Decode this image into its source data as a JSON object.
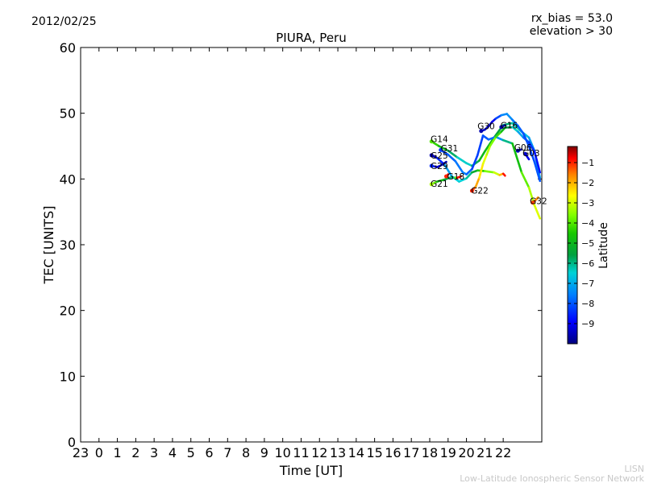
{
  "header": {
    "date": "2012/02/25",
    "rx_bias": "rx_bias = 53.0",
    "elevation": "elevation > 30"
  },
  "footer": {
    "org_short": "LISN",
    "org_full": "Low-Latitude Ionospheric Sensor Network"
  },
  "chart_data": {
    "type": "line",
    "title": "PIURA, Peru",
    "xlabel": "Time [UT]",
    "ylabel": "TEC [UNITS]",
    "xlim": [
      23,
      48.1
    ],
    "ylim": [
      0,
      60
    ],
    "x_ticks": [
      {
        "value": 23,
        "label": "23"
      },
      {
        "value": 24,
        "label": "0"
      },
      {
        "value": 25,
        "label": "1"
      },
      {
        "value": 26,
        "label": "2"
      },
      {
        "value": 27,
        "label": "3"
      },
      {
        "value": 28,
        "label": "4"
      },
      {
        "value": 29,
        "label": "5"
      },
      {
        "value": 30,
        "label": "6"
      },
      {
        "value": 31,
        "label": "7"
      },
      {
        "value": 32,
        "label": "8"
      },
      {
        "value": 33,
        "label": "9"
      },
      {
        "value": 34,
        "label": "10"
      },
      {
        "value": 35,
        "label": "11"
      },
      {
        "value": 36,
        "label": "12"
      },
      {
        "value": 37,
        "label": "13"
      },
      {
        "value": 38,
        "label": "14"
      },
      {
        "value": 39,
        "label": "15"
      },
      {
        "value": 40,
        "label": "16"
      },
      {
        "value": 41,
        "label": "17"
      },
      {
        "value": 42,
        "label": "18"
      },
      {
        "value": 43,
        "label": "19"
      },
      {
        "value": 44,
        "label": "20"
      },
      {
        "value": 45,
        "label": "21"
      },
      {
        "value": 46,
        "label": "22"
      }
    ],
    "y_ticks": [
      0,
      10,
      20,
      30,
      40,
      50,
      60
    ],
    "colorbar": {
      "label": "Latitude",
      "min": -10,
      "max": -0.2,
      "ticks": [
        -1,
        -2,
        -3,
        -4,
        -5,
        -6,
        -7,
        -8,
        -9
      ]
    },
    "series": [
      {
        "name": "G14",
        "label_at": [
          42.05,
          45.6
        ],
        "points": [
          [
            42.1,
            45.7,
            -4.0
          ],
          [
            42.5,
            45.0,
            -4.6
          ],
          [
            43.0,
            44.3,
            -5.4
          ],
          [
            43.5,
            43.3,
            -6.2
          ],
          [
            44.0,
            42.4,
            -6.6
          ],
          [
            44.3,
            42.0,
            -6.2
          ],
          [
            44.7,
            42.8,
            -5.3
          ],
          [
            45.0,
            44.2,
            -4.6
          ],
          [
            45.5,
            46.3,
            -5.2
          ],
          [
            46.0,
            48.2,
            -5.8
          ],
          [
            46.5,
            48.5,
            -6.0
          ],
          [
            47.0,
            47.2,
            -6.5
          ],
          [
            47.4,
            46.3,
            -7.0
          ],
          [
            47.7,
            44.3,
            -7.4
          ],
          [
            48.0,
            40.2,
            -6.8
          ]
        ]
      },
      {
        "name": "G31",
        "label_at": [
          42.6,
          44.2
        ],
        "points": [
          [
            42.6,
            44.4,
            -8.3
          ],
          [
            43.0,
            43.7,
            -8.0
          ],
          [
            43.4,
            42.7,
            -7.8
          ],
          [
            43.8,
            41.0,
            -7.5
          ],
          [
            44.0,
            40.7,
            -7.6
          ],
          [
            44.3,
            41.5,
            -8.1
          ],
          [
            44.6,
            43.6,
            -8.4
          ],
          [
            44.9,
            46.6,
            -8.1
          ],
          [
            45.2,
            46.0,
            -7.9
          ],
          [
            45.6,
            46.4,
            -7.7
          ],
          [
            46.0,
            45.9,
            -6.8
          ],
          [
            46.5,
            45.4,
            -5.2
          ],
          [
            47.0,
            41.0,
            -4.3
          ],
          [
            47.4,
            38.7,
            -3.5
          ],
          [
            47.7,
            36.0,
            -3.0
          ],
          [
            48.0,
            34.0,
            -2.8
          ]
        ]
      },
      {
        "name": "G25",
        "label_at": [
          42.05,
          43.1
        ],
        "points": [
          [
            42.1,
            43.6,
            -9.6
          ],
          [
            42.4,
            43.2,
            -9.3
          ],
          [
            42.8,
            42.2,
            -7.8
          ],
          [
            43.2,
            40.4,
            -6.5
          ],
          [
            43.6,
            39.6,
            -6.6
          ],
          [
            44.0,
            40.1,
            -6.4
          ],
          [
            44.3,
            41.0,
            -5.8
          ],
          [
            44.6,
            41.3,
            -4.9
          ],
          [
            45.0,
            41.2,
            -4.0
          ],
          [
            45.5,
            41.0,
            -3.3
          ],
          [
            45.8,
            40.6,
            -2.8
          ],
          [
            46.0,
            40.8,
            -1.3
          ],
          [
            46.1,
            40.5,
            -0.5
          ]
        ]
      },
      {
        "name": "G29",
        "label_at": [
          42.05,
          41.5
        ],
        "points": [
          [
            42.1,
            42.0,
            -8.5
          ],
          [
            42.4,
            41.8,
            -9.0
          ],
          [
            42.7,
            42.2,
            -9.5
          ],
          [
            42.9,
            42.6,
            -9.7
          ]
        ]
      },
      {
        "name": "G21",
        "label_at": [
          42.05,
          38.8
        ],
        "points": [
          [
            42.1,
            39.2,
            -3.3
          ],
          [
            42.4,
            39.6,
            -4.3
          ],
          [
            42.8,
            39.9,
            -5.3
          ],
          [
            43.1,
            40.2,
            -5.8
          ],
          [
            43.4,
            40.2,
            -6.2
          ],
          [
            43.5,
            40.2,
            -1.2
          ],
          [
            43.7,
            40.4,
            -0.5
          ]
        ]
      },
      {
        "name": "G18",
        "label_at": [
          42.95,
          39.9
        ],
        "points": [
          [
            42.9,
            40.4,
            -1.0
          ],
          [
            43.0,
            40.7,
            -0.5
          ]
        ]
      },
      {
        "name": "G22",
        "label_at": [
          44.25,
          37.8
        ],
        "points": [
          [
            44.3,
            38.2,
            -1.0
          ],
          [
            44.5,
            38.8,
            -1.6
          ],
          [
            44.7,
            40.2,
            -2.2
          ],
          [
            44.9,
            42.3,
            -2.7
          ],
          [
            45.1,
            43.7,
            -3.0
          ],
          [
            45.3,
            45.1,
            -3.4
          ],
          [
            45.6,
            46.4,
            -3.9
          ],
          [
            45.9,
            47.2,
            -4.5
          ],
          [
            46.1,
            47.8,
            -5.2
          ],
          [
            46.5,
            47.9,
            -6.0
          ],
          [
            46.8,
            47.2,
            -6.8
          ],
          [
            47.1,
            46.3,
            -7.4
          ],
          [
            47.4,
            45.6,
            -8.2
          ],
          [
            47.7,
            44.2,
            -8.6
          ],
          [
            48.0,
            41.0,
            -8.9
          ]
        ]
      },
      {
        "name": "G30",
        "label_at": [
          44.6,
          47.6
        ],
        "points": [
          [
            44.8,
            47.3,
            -9.6
          ],
          [
            45.0,
            47.5,
            -9.4
          ],
          [
            45.2,
            48.0,
            -9.2
          ],
          [
            45.4,
            48.7,
            -9.5
          ],
          [
            45.6,
            49.2,
            -8.6
          ],
          [
            45.9,
            49.7,
            -7.7
          ],
          [
            46.2,
            49.9,
            -7.2
          ],
          [
            46.5,
            49.0,
            -7.5
          ],
          [
            46.8,
            48.1,
            -7.8
          ],
          [
            47.1,
            46.9,
            -8.0
          ],
          [
            47.4,
            45.0,
            -8.2
          ],
          [
            47.7,
            42.6,
            -8.1
          ],
          [
            48.0,
            39.7,
            -7.9
          ]
        ]
      },
      {
        "name": "G16",
        "label_at": [
          45.85,
          47.7
        ],
        "points": [
          [
            45.9,
            47.9,
            -9.6
          ],
          [
            46.1,
            48.2,
            -9.7
          ]
        ]
      },
      {
        "name": "G06",
        "label_at": [
          46.6,
          44.3
        ],
        "points": [
          [
            46.8,
            44.3,
            -9.6
          ],
          [
            47.0,
            44.5,
            -9.8
          ]
        ]
      },
      {
        "name": "G03",
        "label_at": [
          47.05,
          43.5
        ],
        "points": [
          [
            47.2,
            43.8,
            -9.3
          ],
          [
            47.4,
            43.0,
            -8.8
          ]
        ]
      },
      {
        "name": "G32",
        "label_at": [
          47.45,
          36.2
        ],
        "points": [
          [
            47.6,
            36.4,
            -1.2
          ],
          [
            47.8,
            36.9,
            -1.5
          ],
          [
            47.9,
            37.2,
            -1.9
          ]
        ]
      }
    ]
  }
}
